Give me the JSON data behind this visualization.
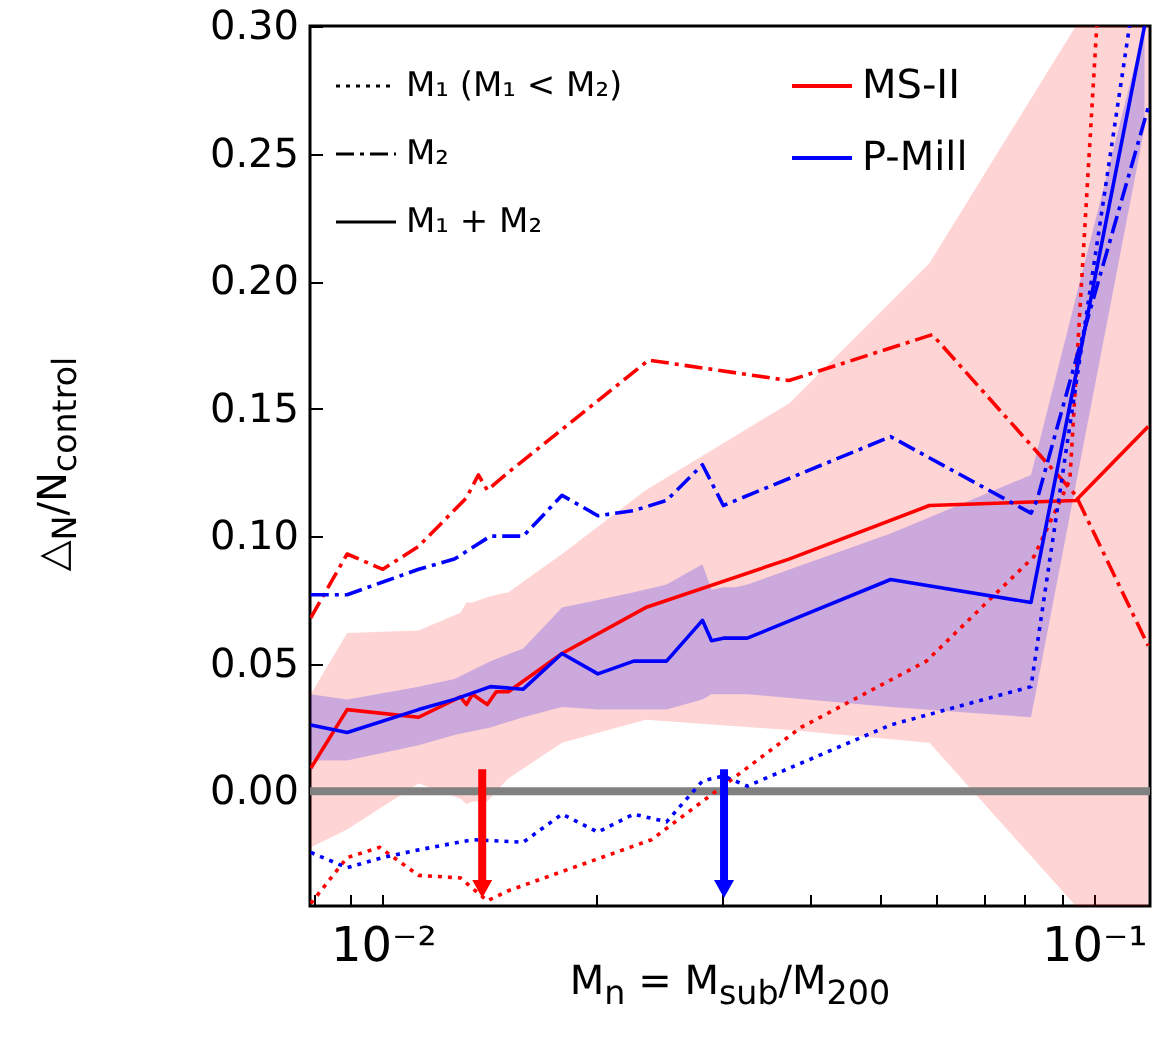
{
  "chart_data": {
    "type": "line",
    "xlabel": "M$_{n}$ = M$_{sub}$/M$_{200}$",
    "ylabel": "△$_{N}$/N$_{control}$",
    "log": "x",
    "legend": "top",
    "grid": false,
    "xlim": [
      0.0079,
      0.12
    ],
    "ylim": [
      -0.045,
      0.3
    ],
    "xticks": [
      {
        "value": 0.008,
        "label": null
      },
      {
        "value": 0.009,
        "label": null
      },
      {
        "value": 0.01,
        "label": "10⁻²"
      },
      {
        "value": 0.02,
        "label": null
      },
      {
        "value": 0.03,
        "label": null
      },
      {
        "value": 0.04,
        "label": null
      },
      {
        "value": 0.05,
        "label": null
      },
      {
        "value": 0.06,
        "label": null
      },
      {
        "value": 0.07,
        "label": null
      },
      {
        "value": 0.08,
        "label": null
      },
      {
        "value": 0.09,
        "label": null
      },
      {
        "value": 0.1,
        "label": "10⁻¹"
      }
    ],
    "yticks": [
      {
        "value": 0,
        "label": "0.00"
      },
      {
        "value": 0.05,
        "label": "0.05"
      },
      {
        "value": 0.1,
        "label": "0.10"
      },
      {
        "value": 0.15,
        "label": "0.15"
      },
      {
        "value": 0.2,
        "label": "0.20"
      },
      {
        "value": 0.25,
        "label": "0.25"
      },
      {
        "value": 0.3,
        "label": "0.30"
      }
    ],
    "annotations": [
      "M₁ (M₁ < M₂)",
      "M₂",
      "M₁ + M₂"
    ],
    "ref_lines": [
      {
        "axis": "y",
        "value": 0,
        "color": "#808080"
      },
      {
        "axis": "x",
        "value": 0.0138,
        "color": "#ff0000"
      },
      {
        "axis": "x",
        "value": 0.0302,
        "color": "#0000ff"
      }
    ],
    "series": [
      {
        "color": "#ff0000",
        "line_style": "dotted",
        "x": [
          0.00792,
          0.00891,
          0.0099,
          0.01123,
          0.01286,
          0.01403,
          0.01502,
          0.02388,
          0.03874,
          0.05816,
          0.08241,
          0.09256,
          0.101
        ],
        "values": [
          -0.044,
          -0.026,
          -0.022,
          -0.033,
          -0.034,
          -0.043,
          -0.039,
          -0.019,
          0.025,
          0.051,
          0.092,
          0.122,
          0.3
        ]
      },
      {
        "color": "#ff0000",
        "line_style": "dashed",
        "x": [
          0.00792,
          0.00891,
          0.01,
          0.01123,
          0.01311,
          0.01363,
          0.01403,
          0.01502,
          0.02366,
          0.03727,
          0.0593,
          0.09437,
          0.1193
        ],
        "values": [
          0.068,
          0.093,
          0.087,
          0.096,
          0.115,
          0.124,
          0.118,
          0.125,
          0.169,
          0.161,
          0.179,
          0.116,
          0.057
        ]
      },
      {
        "name": "MS-II",
        "color": "#ff0000",
        "line_style": "solid",
        "x": [
          0.00792,
          0.00891,
          0.01123,
          0.01286,
          0.01311,
          0.01337,
          0.01403,
          0.01444,
          0.01502,
          0.01787,
          0.02343,
          0.03727,
          0.05873,
          0.09437,
          0.1193
        ],
        "values": [
          0.009,
          0.032,
          0.029,
          0.037,
          0.034,
          0.038,
          0.034,
          0.039,
          0.039,
          0.054,
          0.072,
          0.091,
          0.112,
          0.114,
          0.143
        ],
        "lower": [
          -0.022,
          -0.015,
          0.003,
          -0.003,
          -0.005,
          -0.004,
          -0.004,
          0.0,
          0.005,
          0.019,
          0.028,
          0.024,
          0.019,
          -0.045,
          -0.045
        ],
        "upper": [
          0.038,
          0.062,
          0.063,
          0.07,
          0.074,
          0.074,
          0.076,
          0.077,
          0.078,
          0.093,
          0.118,
          0.152,
          0.207,
          0.3,
          0.3
        ]
      },
      {
        "color": "#0000ff",
        "line_style": "dotted",
        "x": [
          0.00792,
          0.00891,
          0.01,
          0.01123,
          0.01337,
          0.01576,
          0.01787,
          0.02007,
          0.02254,
          0.02507,
          0.02816,
          0.03013,
          0.03256,
          0.0518,
          0.08162,
          0.0856,
          0.1123
        ],
        "values": [
          -0.024,
          -0.03,
          -0.026,
          -0.023,
          -0.019,
          -0.02,
          -0.009,
          -0.016,
          -0.009,
          -0.012,
          0.004,
          0.006,
          0.002,
          0.026,
          0.041,
          0.08,
          0.3
        ]
      },
      {
        "color": "#0000ff",
        "line_style": "dashed",
        "x": [
          0.00792,
          0.00891,
          0.01,
          0.01123,
          0.01261,
          0.01417,
          0.01576,
          0.01787,
          0.02007,
          0.02254,
          0.02507,
          0.02816,
          0.03013,
          0.0518,
          0.08162,
          0.0832,
          0.09437,
          0.1193
        ],
        "values": [
          0.077,
          0.077,
          0.082,
          0.087,
          0.091,
          0.1,
          0.1,
          0.116,
          0.108,
          0.11,
          0.114,
          0.128,
          0.112,
          0.139,
          0.109,
          0.114,
          0.169,
          0.268
        ]
      },
      {
        "name": "P-Mill",
        "color": "#0000ff",
        "line_style": "solid",
        "x": [
          0.00792,
          0.00891,
          0.01123,
          0.01261,
          0.01417,
          0.01576,
          0.01787,
          0.02007,
          0.02254,
          0.02507,
          0.02816,
          0.029,
          0.03013,
          0.03132,
          0.03256,
          0.0518,
          0.08162,
          0.1179
        ],
        "values": [
          0.026,
          0.023,
          0.032,
          0.036,
          0.041,
          0.04,
          0.054,
          0.046,
          0.051,
          0.051,
          0.067,
          0.059,
          0.06,
          0.06,
          0.06,
          0.083,
          0.074,
          0.3
        ],
        "lower": [
          0.012,
          0.012,
          0.018,
          0.022,
          0.025,
          0.029,
          0.033,
          0.032,
          0.032,
          0.032,
          0.036,
          0.038,
          0.038,
          0.038,
          0.038,
          0.033,
          0.029,
          0.26
        ],
        "upper": [
          0.038,
          0.036,
          0.041,
          0.044,
          0.051,
          0.056,
          0.072,
          0.075,
          0.078,
          0.081,
          0.089,
          0.079,
          0.08,
          0.08,
          0.081,
          0.101,
          0.124,
          0.3
        ]
      }
    ]
  }
}
